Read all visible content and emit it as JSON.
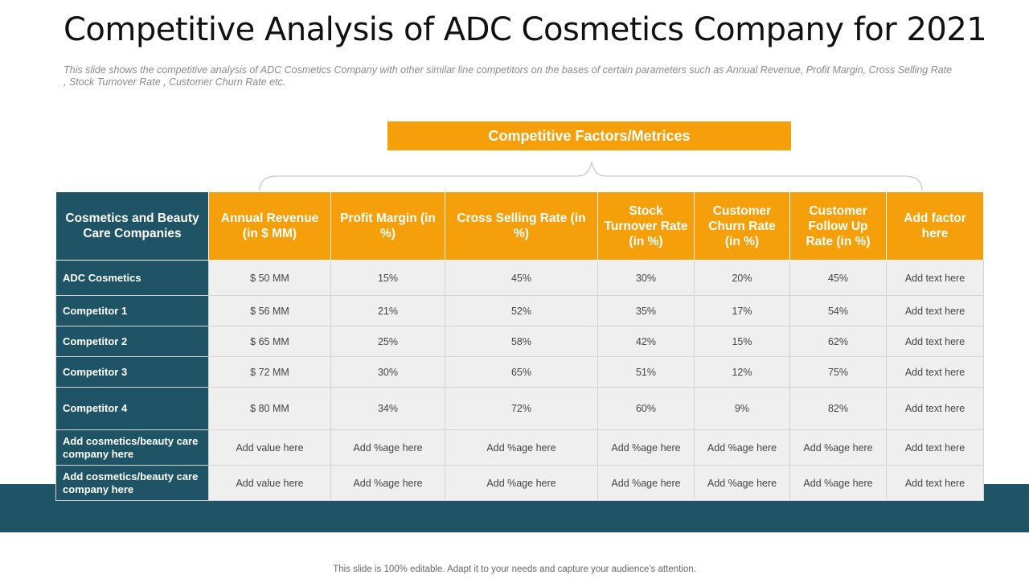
{
  "title": "Competitive Analysis of ADC Cosmetics Company for 2021",
  "subtitle": "This slide shows the competitive analysis of ADC Cosmetics Company with other similar line competitors on the bases of certain parameters such as Annual Revenue,  Profit Margin, Cross Selling Rate , Stock Turnover Rate , Customer Churn Rate etc.",
  "banner": "Competitive Factors/Metrices",
  "table": {
    "headers": [
      "Cosmetics and Beauty Care Companies",
      "Annual Revenue (in $ MM)",
      "Profit Margin (in %)",
      "Cross Selling Rate (in %)",
      "Stock Turnover Rate (in %)",
      "Customer Churn Rate (in %)",
      "Customer Follow Up Rate (in %)",
      "Add factor here"
    ],
    "rows": [
      [
        "ADC Cosmetics",
        "$ 50 MM",
        "15%",
        "45%",
        "30%",
        "20%",
        "45%",
        "Add text here"
      ],
      [
        "Competitor 1",
        "$ 56 MM",
        "21%",
        "52%",
        "35%",
        "17%",
        "54%",
        "Add text here"
      ],
      [
        "Competitor 2",
        "$ 65 MM",
        "25%",
        "58%",
        "42%",
        "15%",
        "62%",
        "Add text here"
      ],
      [
        "Competitor 3",
        "$ 72 MM",
        "30%",
        "65%",
        "51%",
        "12%",
        "75%",
        "Add text here"
      ],
      [
        "Competitor 4",
        "$ 80 MM",
        "34%",
        "72%",
        "60%",
        "9%",
        "82%",
        "Add text here"
      ],
      [
        "Add cosmetics/beauty care company here",
        "Add value  here",
        "Add %age here",
        "Add %age here",
        "Add %age here",
        "Add %age here",
        "Add %age here",
        "Add text here"
      ],
      [
        "Add cosmetics/beauty care company here",
        "Add value  here",
        "Add %age here",
        "Add %age here",
        "Add %age here",
        "Add %age here",
        "Add %age here",
        "Add text here"
      ]
    ]
  },
  "footer": "This slide is 100% editable. Adapt it to your needs and capture your audience's attention.",
  "colors": {
    "accent": "#F5A00A",
    "dark_teal": "#1F5466",
    "cell_bg": "#efefef"
  }
}
